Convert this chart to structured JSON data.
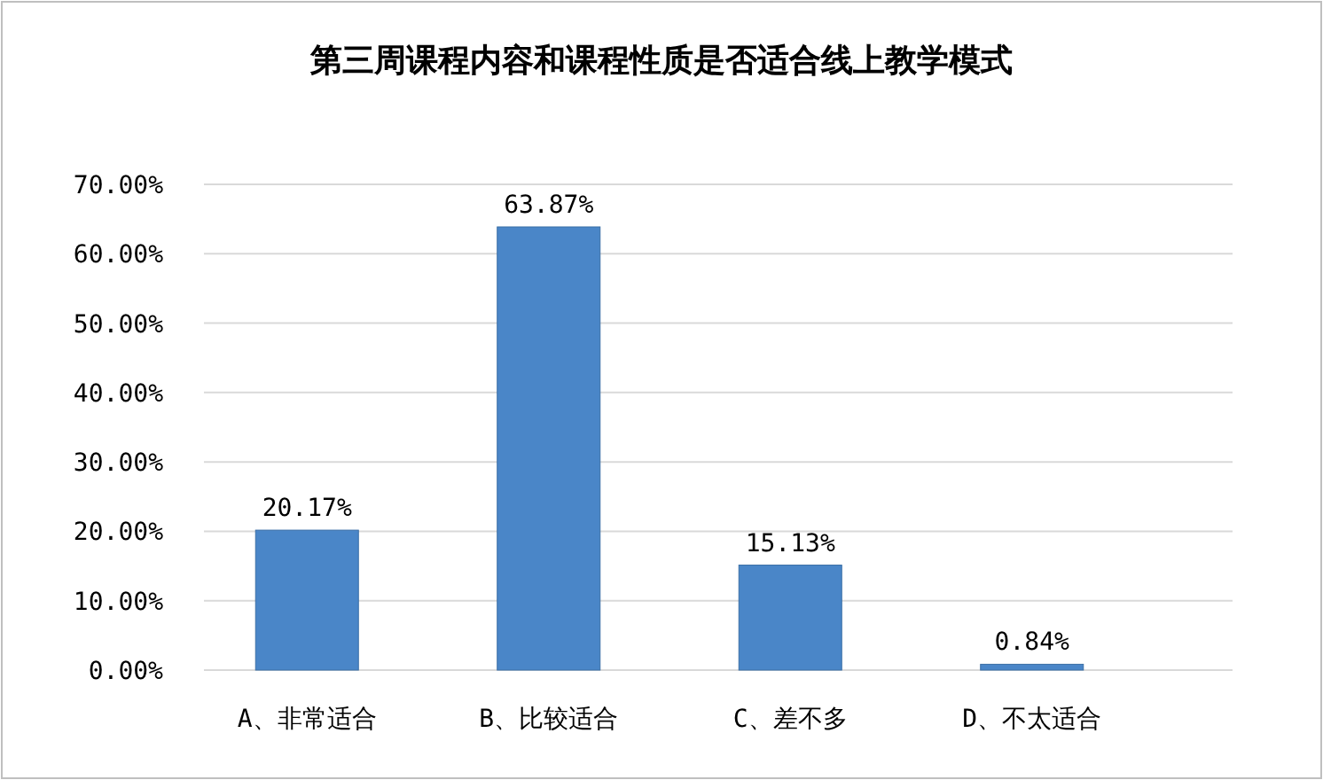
{
  "chart_data": {
    "type": "bar",
    "title": "第三周课程内容和课程性质是否适合线上教学模式",
    "categories": [
      "A、非常适合",
      "B、比较适合",
      "C、差不多",
      "D、不太适合"
    ],
    "values": [
      20.17,
      63.87,
      15.13,
      0.84
    ],
    "value_labels": [
      "20.17%",
      "63.87%",
      "15.13%",
      "0.84%"
    ],
    "color": "#4a86c8",
    "ylim": [
      0,
      70
    ],
    "yticks": [
      {
        "value": 0,
        "label": "0.00%"
      },
      {
        "value": 10,
        "label": "10.00%"
      },
      {
        "value": 20,
        "label": "20.00%"
      },
      {
        "value": 30,
        "label": "30.00%"
      },
      {
        "value": 40,
        "label": "40.00%"
      },
      {
        "value": 50,
        "label": "50.00%"
      },
      {
        "value": 60,
        "label": "60.00%"
      },
      {
        "value": 70,
        "label": "70.00%"
      }
    ],
    "grid": "y"
  }
}
